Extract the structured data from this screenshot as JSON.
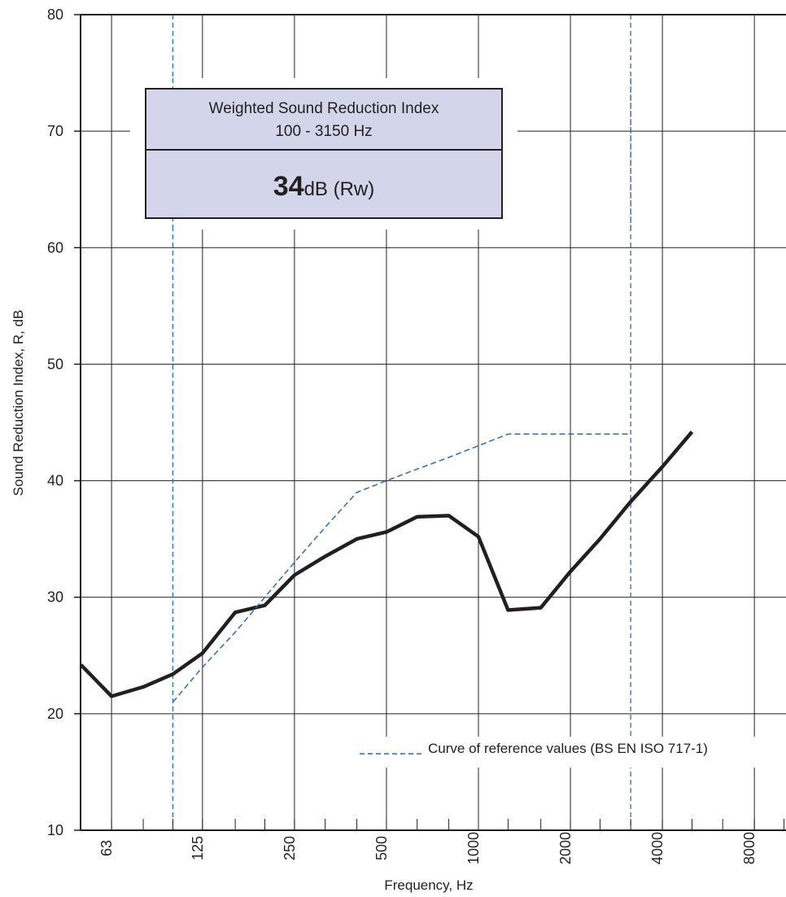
{
  "chart_data": {
    "type": "line",
    "xlabel": "Frequency, Hz",
    "ylabel": "Sound Reduction Index, R, dB",
    "x_scale": "log",
    "ylim": [
      10,
      80
    ],
    "y_ticks": [
      "80",
      "70",
      "60",
      "50",
      "40",
      "30",
      "20",
      "10"
    ],
    "x_ticks": [
      "63",
      "125",
      "250",
      "500",
      "1000",
      "2000",
      "4000",
      "8000"
    ],
    "grid": true,
    "series": [
      {
        "name": "",
        "style": "solid",
        "color": "#231f20",
        "x": [
          50,
          63,
          80,
          100,
          125,
          160,
          200,
          250,
          315,
          400,
          500,
          630,
          800,
          1000,
          1250,
          1600,
          2000,
          2500,
          3150,
          4000,
          5000
        ],
        "y": [
          24.2,
          21.5,
          22.3,
          23.4,
          25.2,
          28.7,
          29.3,
          31.9,
          33.5,
          35.0,
          35.6,
          36.9,
          37.0,
          35.2,
          28.9,
          29.1,
          32.2,
          35.0,
          38.2,
          41.2,
          44.2
        ]
      },
      {
        "name": "Curve of reference values (BS EN ISO 717-1)",
        "style": "dashed",
        "color": "#2e6bb0",
        "x": [
          100,
          125,
          160,
          200,
          250,
          315,
          400,
          500,
          630,
          800,
          1000,
          1250,
          1600,
          2000,
          2500,
          3150
        ],
        "y": [
          21.0,
          24.0,
          27.0,
          30.0,
          33.0,
          36.0,
          39.0,
          40.0,
          41.0,
          42.0,
          43.0,
          44.0,
          44.0,
          44.0,
          44.0,
          44.0
        ]
      }
    ],
    "range_markers_hz": [
      100,
      3150
    ],
    "legend_position": "bottom-right",
    "annotation": {
      "title_line1": "Weighted Sound Reduction Index",
      "title_line2": "100 - 3150 Hz",
      "value": "34",
      "unit": "dB (Rw)",
      "fill_color": "#d3d5ea"
    }
  }
}
